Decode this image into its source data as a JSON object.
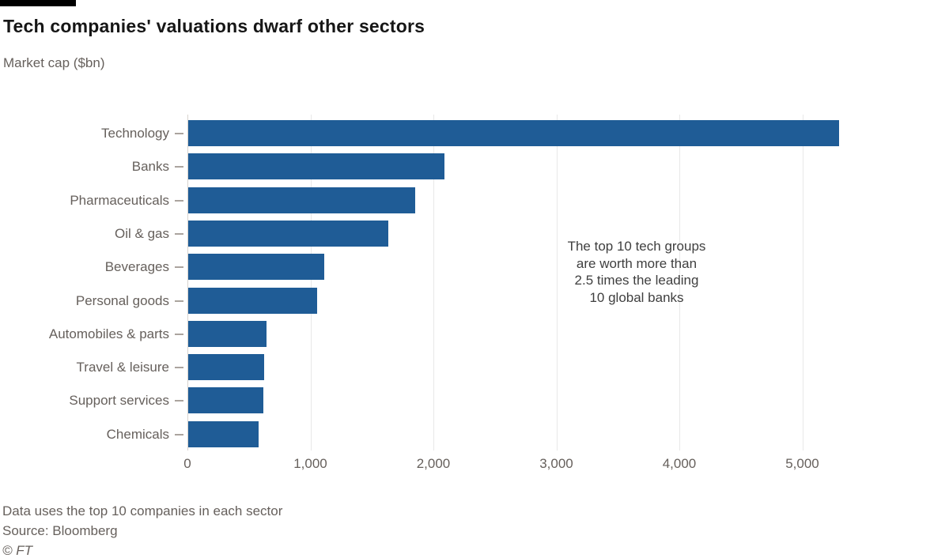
{
  "header": {
    "title": "Tech companies' valuations dwarf other sectors",
    "subtitle": "Market cap ($bn)"
  },
  "footer": {
    "note": "Data uses the top 10 companies in each sector",
    "source": "Source: Bloomberg",
    "copyright": "© FT"
  },
  "colors": {
    "bar": "#1f5c96",
    "title": "#161616",
    "text_muted": "#66605c",
    "annotation": "#3f3f3f",
    "gridline": "#e8e8e8",
    "axis": "#d9d4ce",
    "black_bar": "#000000"
  },
  "chart_data": {
    "type": "bar",
    "orientation": "horizontal",
    "title": "Tech companies' valuations dwarf other sectors",
    "xlabel": "Market cap ($bn)",
    "categories": [
      "Technology",
      "Banks",
      "Pharmaceuticals",
      "Oil & gas",
      "Beverages",
      "Personal goods",
      "Automobiles & parts",
      "Travel & leisure",
      "Support services",
      "Chemicals"
    ],
    "values": [
      5290,
      2085,
      1845,
      1630,
      1105,
      1050,
      635,
      615,
      610,
      575
    ],
    "xlim": [
      0,
      5550
    ],
    "x_ticks": [
      0,
      1000,
      2000,
      3000,
      4000,
      5000
    ],
    "x_tick_labels": [
      "0",
      "1,000",
      "2,000",
      "3,000",
      "4,000",
      "5,000"
    ],
    "grid": true,
    "legend": false,
    "annotation": "The top 10 tech groups\nare worth more than\n2.5 times the leading\n10 global banks"
  }
}
